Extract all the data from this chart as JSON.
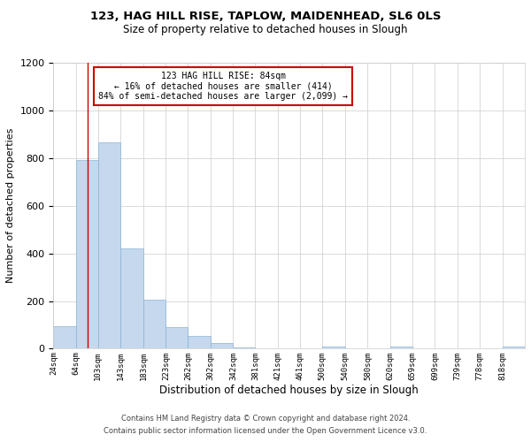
{
  "title": "123, HAG HILL RISE, TAPLOW, MAIDENHEAD, SL6 0LS",
  "subtitle": "Size of property relative to detached houses in Slough",
  "xlabel": "Distribution of detached houses by size in Slough",
  "ylabel": "Number of detached properties",
  "footnote1": "Contains HM Land Registry data © Crown copyright and database right 2024.",
  "footnote2": "Contains public sector information licensed under the Open Government Licence v3.0.",
  "annotation_title": "123 HAG HILL RISE: 84sqm",
  "annotation_line1": "← 16% of detached houses are smaller (414)",
  "annotation_line2": "84% of semi-detached houses are larger (2,099) →",
  "bar_color": "#c5d8ed",
  "bar_edge_color": "#8ab4d4",
  "ref_line_color": "#cc0000",
  "ref_line_x": 84,
  "categories": [
    "24sqm",
    "64sqm",
    "103sqm",
    "143sqm",
    "183sqm",
    "223sqm",
    "262sqm",
    "302sqm",
    "342sqm",
    "381sqm",
    "421sqm",
    "461sqm",
    "500sqm",
    "540sqm",
    "580sqm",
    "620sqm",
    "659sqm",
    "699sqm",
    "739sqm",
    "778sqm",
    "818sqm"
  ],
  "bin_edges": [
    24,
    64,
    103,
    143,
    183,
    223,
    262,
    302,
    342,
    381,
    421,
    461,
    500,
    540,
    580,
    620,
    659,
    699,
    739,
    778,
    818,
    858
  ],
  "values": [
    95,
    790,
    865,
    420,
    205,
    90,
    55,
    25,
    5,
    2,
    0,
    0,
    10,
    0,
    0,
    10,
    0,
    0,
    0,
    0,
    10
  ],
  "ylim": [
    0,
    1200
  ],
  "yticks": [
    0,
    200,
    400,
    600,
    800,
    1000,
    1200
  ],
  "annotation_box_color": "#ffffff",
  "annotation_box_edge": "#cc0000",
  "background_color": "#ffffff",
  "grid_color": "#cccccc"
}
